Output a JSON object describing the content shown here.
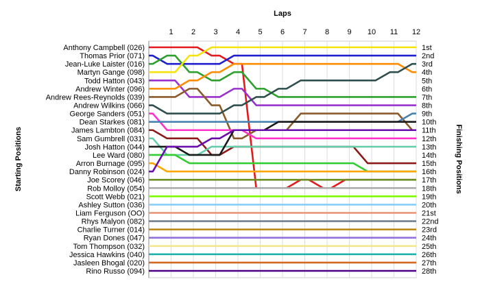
{
  "chart_data": {
    "type": "line",
    "title": "Laps",
    "ylabel_left": "Starting Positions",
    "ylabel_right": "Finishing Positions",
    "x": [
      0,
      1,
      2,
      3,
      4,
      5,
      6,
      7,
      8,
      9,
      10,
      11,
      12
    ],
    "x_tick_labels": [
      "1",
      "2",
      "3",
      "4",
      "5",
      "6",
      "7",
      "8",
      "9",
      "10",
      "11",
      "12"
    ],
    "xlim": [
      0,
      12
    ],
    "ylim": [
      1,
      28
    ],
    "y_axis": "position, 1 at top",
    "grid": "vertical lines at each lap",
    "finishing_labels": [
      "1st",
      "2nd",
      "3rd",
      "4th",
      "5th",
      "6th",
      "7th",
      "8th",
      "9th",
      "10th",
      "11th",
      "12th",
      "13th",
      "14th",
      "15th",
      "16th",
      "17th",
      "18th",
      "19th",
      "20th",
      "21st",
      "22nd",
      "23rd",
      "24th",
      "25th",
      "26th",
      "27th",
      "28th"
    ],
    "series": [
      {
        "name": "Anthony Campbell (026)",
        "color": "#e31a1c",
        "values": [
          1,
          1,
          1,
          2,
          3,
          18,
          18,
          17,
          18,
          17,
          17,
          17,
          17
        ]
      },
      {
        "name": "Thomas Prior (071)",
        "color": "#1f1fd0",
        "values": [
          2,
          3,
          3,
          3,
          2,
          2,
          2,
          2,
          2,
          2,
          2,
          2,
          2
        ]
      },
      {
        "name": "Jean-Luke Laister (016)",
        "color": "#2ca02c",
        "values": [
          3,
          2,
          4,
          5,
          4,
          6,
          7,
          7,
          7,
          7,
          7,
          7,
          7
        ]
      },
      {
        "name": "Martyn Gange (098)",
        "color": "#f5e20b",
        "values": [
          4,
          4,
          2,
          1,
          1,
          1,
          1,
          1,
          1,
          1,
          1,
          1,
          1
        ]
      },
      {
        "name": "Todd Hatton (043)",
        "color": "#9932cc",
        "values": [
          5,
          5,
          7,
          7,
          6,
          8,
          8,
          8,
          8,
          8,
          8,
          8,
          8
        ]
      },
      {
        "name": "Andrew Winter (096)",
        "color": "#ff8c00",
        "values": [
          6,
          6,
          5,
          4,
          3,
          3,
          3,
          3,
          3,
          3,
          3,
          3,
          4
        ]
      },
      {
        "name": "Andrew Rees-Reynolds (039)",
        "color": "#8b5a2b",
        "values": [
          7,
          7,
          6,
          8,
          12,
          11,
          11,
          9,
          9,
          9,
          9,
          9,
          11
        ]
      },
      {
        "name": "Andrew Wilkins (066)",
        "color": "#2f4f4f",
        "values": [
          8,
          9,
          9,
          9,
          8,
          7,
          6,
          5,
          5,
          5,
          5,
          4,
          3
        ]
      },
      {
        "name": "George Sanders (051)",
        "color": "#ff33cc",
        "values": [
          9,
          11,
          11,
          11,
          11,
          12,
          12,
          12,
          12,
          12,
          12,
          12,
          12
        ]
      },
      {
        "name": "Dean Starkes (081)",
        "color": "#4682b4",
        "values": [
          10,
          10,
          10,
          10,
          10,
          10,
          10,
          10,
          10,
          10,
          10,
          10,
          9
        ]
      },
      {
        "name": "James Lambton (084)",
        "color": "#8b1a1a",
        "values": [
          11,
          12,
          12,
          14,
          13,
          13,
          13,
          13,
          13,
          13,
          15,
          15,
          15
        ]
      },
      {
        "name": "Sam Gumbrell (031)",
        "color": "#66cdaa",
        "values": [
          12,
          14,
          14,
          13,
          13,
          13,
          13,
          13,
          13,
          13,
          13,
          13,
          13
        ]
      },
      {
        "name": "Josh Hatton (044)",
        "color": "#1a1a1a",
        "values": [
          13,
          13,
          14,
          14,
          11,
          11,
          10,
          10,
          10,
          10,
          10,
          10,
          10
        ]
      },
      {
        "name": "Lee Ward (080)",
        "color": "#32cd32",
        "values": [
          14,
          14,
          15,
          15,
          15,
          15,
          15,
          15,
          15,
          15,
          16,
          16,
          16
        ]
      },
      {
        "name": "Arron Burnage (095)",
        "color": "#ffa500",
        "values": [
          15,
          16,
          16,
          16,
          16,
          16,
          16,
          16,
          16,
          16,
          16,
          16,
          16
        ]
      },
      {
        "name": "Danny Robinson (024)",
        "color": "#6a0dad",
        "values": [
          16,
          13,
          13,
          12,
          11,
          11,
          11,
          11,
          11,
          11,
          11,
          11,
          11
        ]
      },
      {
        "name": "Joe Scorey (046)",
        "color": "#6b8e23",
        "values": [
          17,
          17,
          17,
          17,
          17,
          17,
          17,
          17,
          17,
          17,
          17,
          17,
          17
        ]
      },
      {
        "name": "Rob Molloy (054)",
        "color": "#aaaaaa",
        "values": [
          18,
          18,
          18,
          18,
          18,
          18,
          18,
          18,
          18,
          18,
          18,
          18,
          18
        ]
      },
      {
        "name": "Scott Webb (021)",
        "color": "#7cfc00",
        "values": [
          19,
          19,
          19,
          19,
          19,
          19,
          19,
          19,
          19,
          19,
          19,
          19,
          19
        ]
      },
      {
        "name": "Ashley Sutton (036)",
        "color": "#87cefa",
        "values": [
          20,
          20,
          20,
          20,
          20,
          20,
          20,
          20,
          20,
          20,
          20,
          20,
          20
        ]
      },
      {
        "name": "Liam Ferguson (OO)",
        "color": "#e9967a",
        "values": [
          21,
          21,
          21,
          21,
          21,
          21,
          21,
          21,
          21,
          21,
          21,
          21,
          21
        ]
      },
      {
        "name": "Rhys Malyon (082)",
        "color": "#708090",
        "values": [
          22,
          22,
          22,
          22,
          22,
          22,
          22,
          22,
          22,
          22,
          22,
          22,
          22
        ]
      },
      {
        "name": "Charlie Turner (014)",
        "color": "#b8860b",
        "values": [
          23,
          23,
          23,
          23,
          23,
          23,
          23,
          23,
          23,
          23,
          23,
          23,
          23
        ]
      },
      {
        "name": "Ryan Dones (047)",
        "color": "#9370db",
        "values": [
          24,
          24,
          24,
          24,
          24,
          24,
          24,
          24,
          24,
          24,
          24,
          24,
          24
        ]
      },
      {
        "name": "Tom Thompson (032)",
        "color": "#f0e68c",
        "values": [
          25,
          25,
          25,
          25,
          25,
          25,
          25,
          25,
          25,
          25,
          25,
          25,
          25
        ]
      },
      {
        "name": "Jessica Hawkins (040)",
        "color": "#20b2aa",
        "values": [
          26,
          26,
          26,
          26,
          26,
          26,
          26,
          26,
          26,
          26,
          26,
          26,
          26
        ]
      },
      {
        "name": "Jasleen Bhogal (020)",
        "color": "#d2691e",
        "values": [
          27,
          27,
          27,
          27,
          27,
          27,
          27,
          27,
          27,
          27,
          27,
          27,
          27
        ]
      },
      {
        "name": "Rino Russo (094)",
        "color": "#4b0082",
        "values": [
          28,
          28,
          28,
          28,
          28,
          28,
          28,
          28,
          28,
          28,
          28,
          28,
          28
        ]
      }
    ]
  }
}
